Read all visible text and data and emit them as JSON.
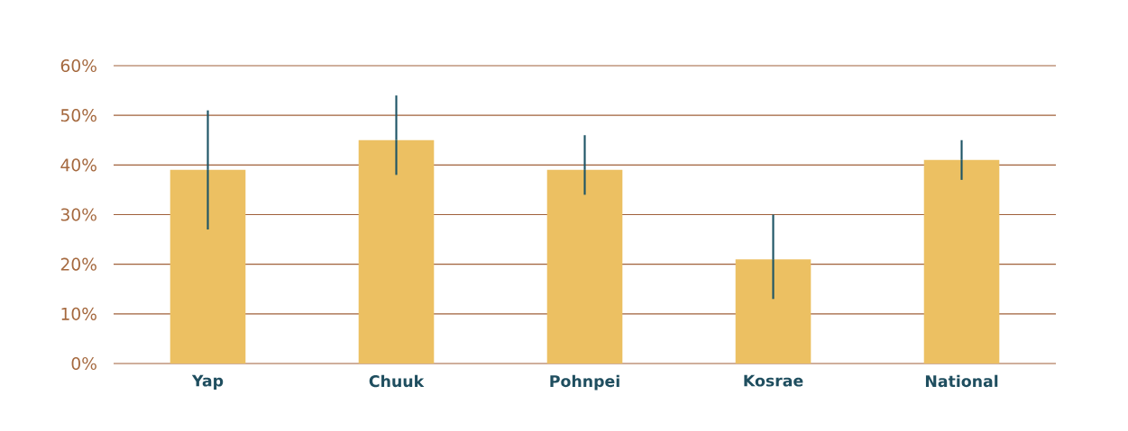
{
  "chart_data": {
    "type": "bar",
    "categories": [
      "Yap",
      "Chuuk",
      "Pohnpei",
      "Kosrae",
      "National"
    ],
    "values": [
      39,
      45,
      39,
      21,
      41
    ],
    "errors": [
      [
        27,
        51
      ],
      [
        38,
        54
      ],
      [
        34,
        46
      ],
      [
        13,
        30
      ],
      [
        37,
        45
      ]
    ],
    "color": "#ecc062",
    "ylim": [
      0,
      60
    ],
    "yticks": [
      {
        "value": 0,
        "label": "0%"
      },
      {
        "value": 10,
        "label": "10%"
      },
      {
        "value": 20,
        "label": "20%"
      },
      {
        "value": 30,
        "label": "30%"
      },
      {
        "value": 40,
        "label": "40%"
      },
      {
        "value": 50,
        "label": "50%"
      },
      {
        "value": 60,
        "label": "60%"
      }
    ],
    "grid": "y"
  }
}
